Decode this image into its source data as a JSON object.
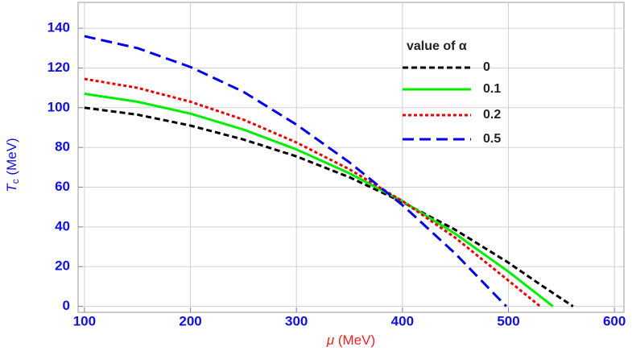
{
  "chart_data": {
    "type": "line",
    "x_label": {
      "symbol": "μ",
      "unit": "(MeV)"
    },
    "y_label": {
      "symbol": "T",
      "subscript": "c",
      "unit": "(MeV)"
    },
    "legend_title": "value of α",
    "legend": "upper right",
    "grid": true,
    "xlim": [
      94,
      609
    ],
    "ylim": [
      -3,
      153
    ],
    "xticks": [
      100,
      200,
      300,
      400,
      500,
      600
    ],
    "yticks": [
      0,
      20,
      40,
      60,
      80,
      100,
      120,
      140
    ],
    "series": [
      {
        "name": "0",
        "color": "#000000",
        "dash": "7,4",
        "x": [
          100,
          150,
          200,
          250,
          300,
          350,
          400,
          450,
          500,
          530,
          561
        ],
        "values": [
          100,
          96.5,
          91,
          84,
          75.5,
          65,
          52.5,
          38.5,
          22,
          11,
          0
        ]
      },
      {
        "name": "0.1",
        "color": "#00ee00",
        "dash": "none",
        "x": [
          100,
          150,
          200,
          250,
          300,
          350,
          400,
          450,
          500,
          542
        ],
        "values": [
          107,
          103,
          97,
          89,
          79,
          67,
          53,
          36.5,
          17.5,
          0
        ]
      },
      {
        "name": "0.2",
        "color": "#ee0000",
        "dash": "4,3",
        "x": [
          100,
          150,
          200,
          250,
          300,
          350,
          400,
          450,
          500,
          530
        ],
        "values": [
          114.5,
          110,
          103,
          94,
          82.5,
          69,
          53,
          34.5,
          13,
          0
        ]
      },
      {
        "name": "0.5",
        "color": "#0000ee",
        "dash": "14,7",
        "x": [
          100,
          150,
          200,
          250,
          300,
          350,
          400,
          450,
          498
        ],
        "values": [
          136,
          130,
          120.5,
          108,
          91.5,
          72.5,
          51,
          26.5,
          0
        ]
      }
    ]
  }
}
